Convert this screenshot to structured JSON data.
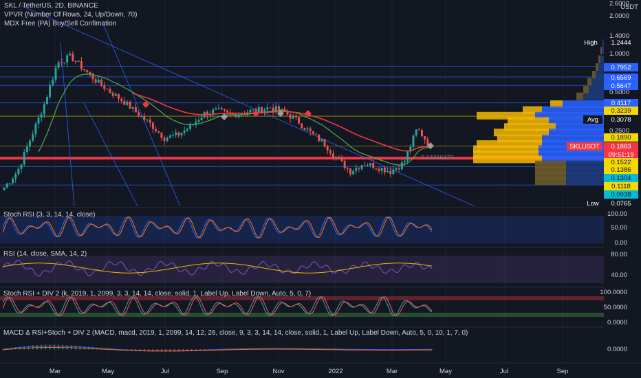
{
  "header": {
    "symbol_line": "SKL / TetherUS, 2D, BINANCE",
    "indicator_1": "VPVR (Number Of Rows, 24, Up/Down, 70)",
    "indicator_2": "MDX Free (PA) Buy/Sell Confimation"
  },
  "price_axis": {
    "unit": "USDT",
    "ticks": [
      "2.6000",
      "2.0000",
      "1.4000",
      "1.0000",
      "0.5000",
      "0.2500"
    ]
  },
  "price_tags": [
    {
      "label": "High",
      "value": "1.2444",
      "bg": "#131722",
      "fg": "#ffffff"
    },
    {
      "label": "",
      "value": "0.7952",
      "bg": "#2962ff",
      "fg": "#ffffff"
    },
    {
      "label": "",
      "value": "0.6569",
      "bg": "#2962ff",
      "fg": "#ffffff"
    },
    {
      "label": "",
      "value": "0.5647",
      "bg": "#2962ff",
      "fg": "#ffffff"
    },
    {
      "label": "",
      "value": "0.4117",
      "bg": "#2962ff",
      "fg": "#ffffff"
    },
    {
      "label": "",
      "value": "0.3239",
      "bg": "#f5d800",
      "fg": "#131722"
    },
    {
      "label": "Avg",
      "value": "0.3078",
      "bg": "#131722",
      "fg": "#ffffff"
    },
    {
      "label": "",
      "value": "0.1890",
      "bg": "#f5d800",
      "fg": "#131722"
    },
    {
      "label": "SKLUSDT",
      "value": "0.1883",
      "bg": "#f23645",
      "fg": "#ffffff"
    },
    {
      "label": "",
      "value": "09:51:19",
      "bg": "#f23645",
      "fg": "#ffffff"
    },
    {
      "label": "",
      "value": "0.1522",
      "bg": "#f5d800",
      "fg": "#131722"
    },
    {
      "label": "",
      "value": "0.1386",
      "bg": "#f5d800",
      "fg": "#131722"
    },
    {
      "label": "",
      "value": "0.1304",
      "bg": "#00bcd4",
      "fg": "#131722"
    },
    {
      "label": "",
      "value": "0.1118",
      "bg": "#f5d800",
      "fg": "#131722"
    },
    {
      "label": "",
      "value": "0.0938",
      "bg": "#00bcd4",
      "fg": "#131722"
    },
    {
      "label": "Low",
      "value": "0.0765",
      "bg": "#131722",
      "fg": "#ffffff"
    }
  ],
  "annotation": "0.14416473",
  "panes": {
    "stoch_rsi": {
      "title": "Stoch RSI (3, 3, 14, 14, close)",
      "ticks": [
        "100.00",
        "50.00",
        "0.00"
      ]
    },
    "rsi": {
      "title": "RSI (14, close, SMA, 14, 2)",
      "ticks": [
        "80.00",
        "40.00"
      ]
    },
    "stoch_div": {
      "title": "Stoch RSI + DIV 2 (k, 2019, 1, 2099, 3, 3, 14, 14, close, solid, 1, Label Up, Label Down, Auto, 5, 0, 7)",
      "ticks": [
        "100.0000",
        "50.0000",
        "0.0000"
      ]
    },
    "macd": {
      "title": "MACD & RSI+Stoch + DIV 2 (MACD, macd, 2019, 1, 2099, 14, 12, 26, close, 9, 3, 3, 14, 14, close, solid, 1, Label Up, Label Down, Auto, 5, 0, 10, 1, 7, 0)",
      "ticks": [
        "0.0000"
      ]
    }
  },
  "time_axis": {
    "labels": [
      "Mar",
      "May",
      "Jul",
      "Sep",
      "Nov",
      "2022",
      "Mar",
      "May",
      "Jul",
      "Sep"
    ]
  },
  "colors": {
    "background": "#131722",
    "up_candle": "#26a69a",
    "down_candle": "#ef5350",
    "ema_red": "#f23645",
    "ema_green": "#4caf50",
    "vpvr_up": "#2962ff",
    "vpvr_down": "#f5b700",
    "stoch_k": "#2962ff",
    "stoch_d": "#ff6d00",
    "rsi_line": "#7e57c2",
    "rsi_sma": "#f5b700"
  },
  "chart_data": {
    "type": "candlestick",
    "symbol": "SKL / TetherUS",
    "interval": "2D",
    "exchange": "BINANCE",
    "scale": "log",
    "x_labels": [
      "Mar",
      "May",
      "Jul",
      "Sep",
      "Nov",
      "2022",
      "Mar",
      "May",
      "Jul",
      "Sep"
    ],
    "close_path_approx": [
      0.09,
      0.12,
      0.22,
      0.4,
      0.85,
      0.95,
      0.75,
      0.6,
      0.5,
      0.42,
      0.34,
      0.28,
      0.22,
      0.23,
      0.27,
      0.34,
      0.36,
      0.33,
      0.35,
      0.36,
      0.38,
      0.35,
      0.3,
      0.24,
      0.2,
      0.15,
      0.12,
      0.14,
      0.13,
      0.12,
      0.14,
      0.26,
      0.19
    ],
    "current_price": 0.1883,
    "high": 1.2444,
    "low": 0.0765,
    "avg": 0.3078,
    "vpvr_levels": [
      0.7952,
      0.6569,
      0.5647,
      0.4117,
      0.3239,
      0.189,
      0.1522,
      0.1386,
      0.1304,
      0.1118,
      0.0938
    ]
  }
}
